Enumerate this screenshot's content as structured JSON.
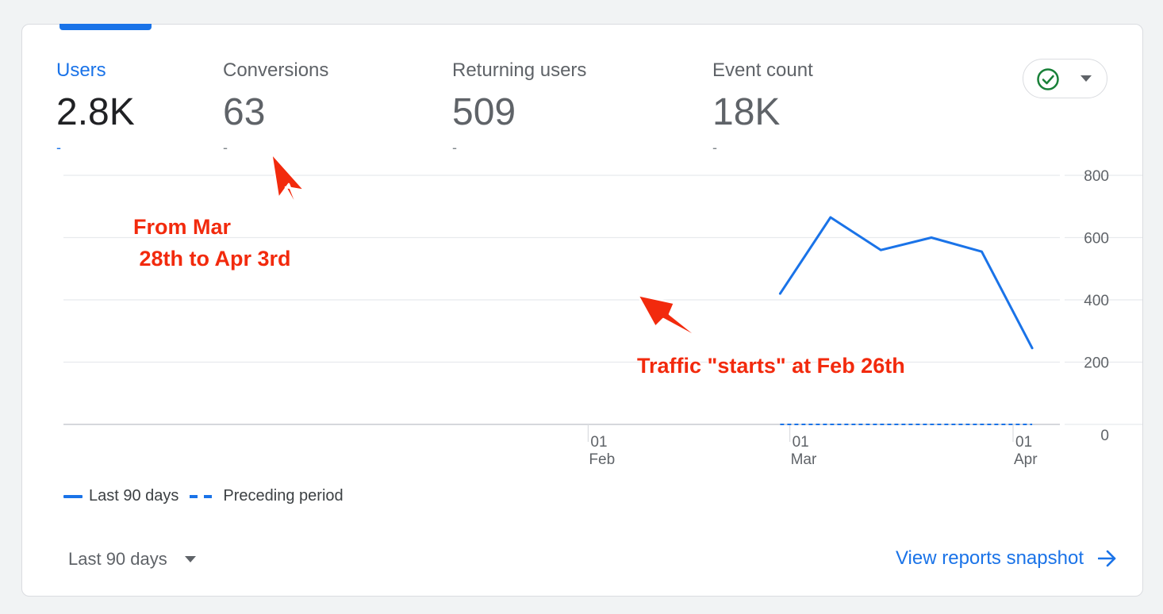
{
  "metrics": [
    {
      "label": "Users",
      "value": "2.8K",
      "delta": "-"
    },
    {
      "label": "Conversions",
      "value": "63",
      "delta": "-"
    },
    {
      "label": "Returning users",
      "value": "509",
      "delta": "-"
    },
    {
      "label": "Event count",
      "value": "18K",
      "delta": "-"
    }
  ],
  "status_icon": "check-circle-icon",
  "annotations": {
    "conversions_note": "From Mar\n 28th to Apr 3rd",
    "traffic_note": "Traffic \"starts\" at Feb 26th"
  },
  "legend": {
    "current": "Last 90 days",
    "previous": "Preceding period"
  },
  "footer": {
    "date_range": "Last 90 days",
    "snapshot_link": "View reports snapshot"
  },
  "colors": {
    "accent": "#1a73e8",
    "annotation": "#f22a0d",
    "check": "#188038"
  },
  "chart_data": {
    "type": "line",
    "x_ticks": [
      {
        "day": "01",
        "month": "Feb"
      },
      {
        "day": "01",
        "month": "Mar"
      },
      {
        "day": "01",
        "month": "Apr"
      }
    ],
    "ylim": [
      0,
      800
    ],
    "y_ticks": [
      0,
      200,
      400,
      600,
      800
    ],
    "grid": true,
    "legend_position": "bottom-left",
    "series": [
      {
        "name": "Last 90 days",
        "style": "solid",
        "points": [
          {
            "x": "2023-02-26",
            "y": 420
          },
          {
            "x": "2023-03-05",
            "y": 665
          },
          {
            "x": "2023-03-12",
            "y": 560
          },
          {
            "x": "2023-03-19",
            "y": 600
          },
          {
            "x": "2023-03-26",
            "y": 555
          },
          {
            "x": "2023-04-02",
            "y": 245
          }
        ]
      },
      {
        "name": "Preceding period",
        "style": "dashed",
        "points": [
          {
            "x": "2023-02-26",
            "y": 0
          },
          {
            "x": "2023-04-02",
            "y": 0
          }
        ]
      }
    ]
  }
}
